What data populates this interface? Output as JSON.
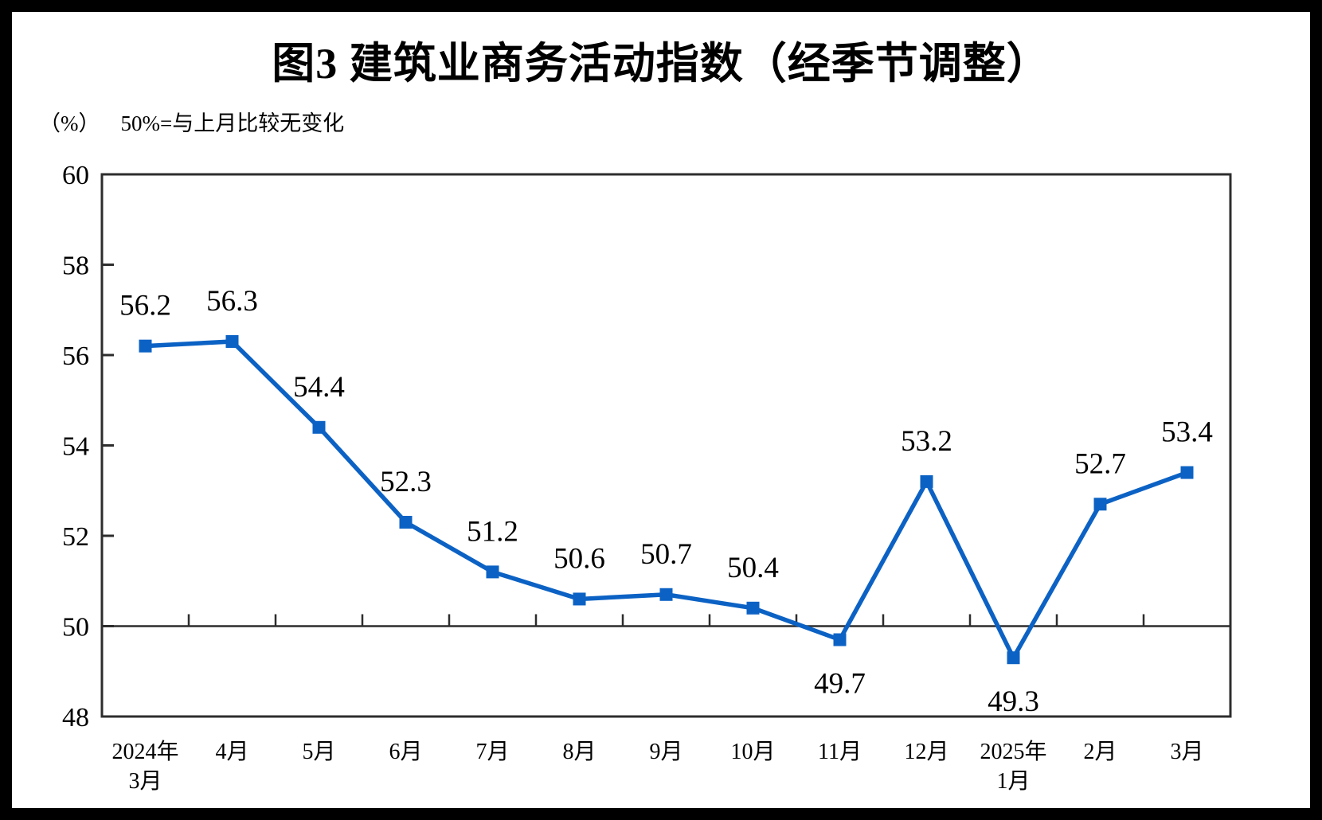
{
  "chart": {
    "title": "图3  建筑业商务活动指数（经季节调整）",
    "unit_label": "（%）",
    "note": "50%=与上月比较无变化"
  },
  "chart_data": {
    "type": "line",
    "title": "图3 建筑业商务活动指数（经季节调整）",
    "ylabel": "%",
    "annotation": "50%=与上月比较无变化",
    "categories": [
      [
        "2024年",
        "3月"
      ],
      [
        "4月"
      ],
      [
        "5月"
      ],
      [
        "6月"
      ],
      [
        "7月"
      ],
      [
        "8月"
      ],
      [
        "9月"
      ],
      [
        "10月"
      ],
      [
        "11月"
      ],
      [
        "12月"
      ],
      [
        "2025年",
        "1月"
      ],
      [
        "2月"
      ],
      [
        "3月"
      ]
    ],
    "values": [
      56.2,
      56.3,
      54.4,
      52.3,
      51.2,
      50.6,
      50.7,
      50.4,
      49.7,
      53.2,
      49.3,
      52.7,
      53.4
    ],
    "ylim": [
      48,
      60
    ],
    "ytick_step": 2,
    "yticks": [
      48,
      50,
      52,
      54,
      56,
      58,
      60
    ],
    "x_axis_cross_at": 50,
    "label_below_indices": [
      8,
      10
    ],
    "grid": false,
    "legend": false,
    "line_color": "#0c62c4",
    "axis_color": "#2d2d2d",
    "marker": "square"
  }
}
